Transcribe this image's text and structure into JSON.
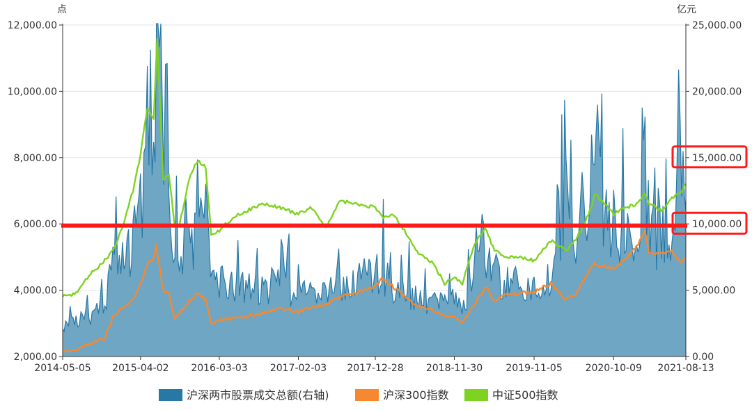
{
  "chart_data": {
    "type": "area",
    "y_left_unit": "点",
    "y_right_unit": "亿元",
    "y_left_ticks": [
      "2,000.00",
      "4,000.00",
      "6,000.00",
      "8,000.00",
      "10,000.00",
      "12,000.00"
    ],
    "y_right_ticks": [
      "0.00",
      "5,000.00",
      "10,000.00",
      "15,000.00",
      "20,000.00",
      "25,000.00"
    ],
    "ylim_left": [
      2000,
      12000
    ],
    "ylim_right": [
      0,
      25000
    ],
    "x_ticks": [
      "2014-05-05",
      "2015-04-02",
      "2016-03-03",
      "2017-02-03",
      "2017-12-28",
      "2018-11-30",
      "2019-11-05",
      "2020-10-09",
      "2021-08-13"
    ],
    "xlim": [
      "2014-05-05",
      "2021-08-13"
    ],
    "grid": true,
    "legend_position": "bottom",
    "series": [
      {
        "name": "沪深两市股票成交总额(右轴)",
        "type": "area",
        "axis": "right",
        "color": "#2878a6",
        "fill": "#6ea6c4",
        "x": [
          "2014-05-05",
          "2014-07-01",
          "2014-09-01",
          "2014-11-01",
          "2014-12-05",
          "2015-01-15",
          "2015-03-01",
          "2015-04-02",
          "2015-05-01",
          "2015-05-28",
          "2015-06-15",
          "2015-07-10",
          "2015-08-01",
          "2015-08-20",
          "2015-09-15",
          "2015-11-01",
          "2015-12-01",
          "2016-01-05",
          "2016-02-15",
          "2016-03-03",
          "2016-05-01",
          "2016-07-01",
          "2016-09-01",
          "2016-11-15",
          "2017-02-03",
          "2017-04-01",
          "2017-06-01",
          "2017-08-01",
          "2017-10-01",
          "2017-12-28",
          "2018-01-25",
          "2018-03-15",
          "2018-05-01",
          "2018-07-01",
          "2018-09-01",
          "2018-10-20",
          "2018-11-30",
          "2019-01-15",
          "2019-02-25",
          "2019-03-10",
          "2019-04-15",
          "2019-05-20",
          "2019-07-01",
          "2019-09-01",
          "2019-11-05",
          "2020-01-15",
          "2020-02-25",
          "2020-03-20",
          "2020-05-01",
          "2020-07-07",
          "2020-07-20",
          "2020-08-20",
          "2020-10-09",
          "2020-12-01",
          "2021-01-15",
          "2021-02-20",
          "2021-03-20",
          "2021-05-01",
          "2021-06-15",
          "2021-07-20",
          "2021-08-13"
        ],
        "values": [
          2100,
          2700,
          3000,
          3900,
          7800,
          6800,
          8200,
          11000,
          13000,
          14300,
          23400,
          15500,
          11000,
          9000,
          7000,
          8200,
          9200,
          10500,
          5200,
          5800,
          5200,
          5000,
          4700,
          5500,
          4300,
          4500,
          4700,
          5500,
          5600,
          6000,
          6200,
          5000,
          4700,
          4300,
          3900,
          3600,
          4000,
          3800,
          6300,
          9200,
          7600,
          6300,
          5200,
          5600,
          4800,
          5600,
          9100,
          11700,
          6800,
          12900,
          17500,
          11000,
          8600,
          8900,
          9500,
          10500,
          8800,
          8500,
          9500,
          13800,
          11000
        ]
      },
      {
        "name": "沪深300指数",
        "type": "line",
        "axis": "left",
        "color": "#f7882f",
        "x": [
          "2014-05-05",
          "2014-07-01",
          "2014-09-01",
          "2014-11-01",
          "2014-12-05",
          "2015-01-15",
          "2015-03-01",
          "2015-04-02",
          "2015-05-01",
          "2015-05-28",
          "2015-06-08",
          "2015-07-08",
          "2015-08-01",
          "2015-08-26",
          "2015-09-15",
          "2015-11-01",
          "2015-12-01",
          "2016-01-05",
          "2016-01-28",
          "2016-03-03",
          "2016-05-01",
          "2016-07-01",
          "2016-09-01",
          "2016-11-15",
          "2017-02-03",
          "2017-04-01",
          "2017-06-01",
          "2017-08-01",
          "2017-10-01",
          "2017-12-28",
          "2018-01-25",
          "2018-03-15",
          "2018-05-01",
          "2018-07-01",
          "2018-09-01",
          "2018-10-20",
          "2018-11-30",
          "2019-01-03",
          "2019-02-25",
          "2019-04-15",
          "2019-05-20",
          "2019-07-01",
          "2019-09-01",
          "2019-11-05",
          "2020-01-15",
          "2020-03-20",
          "2020-05-01",
          "2020-07-07",
          "2020-07-20",
          "2020-10-09",
          "2020-12-01",
          "2021-01-15",
          "2021-02-18",
          "2021-03-10",
          "2021-05-01",
          "2021-06-15",
          "2021-07-20",
          "2021-08-13"
        ],
        "values": [
          2180,
          2200,
          2400,
          2550,
          3200,
          3450,
          3700,
          4200,
          4800,
          4950,
          5350,
          4000,
          3900,
          3100,
          3300,
          3700,
          3900,
          3700,
          2950,
          3100,
          3150,
          3200,
          3300,
          3450,
          3350,
          3500,
          3550,
          3800,
          3900,
          4100,
          4380,
          4100,
          3800,
          3500,
          3400,
          3200,
          3200,
          3000,
          3600,
          4100,
          3700,
          3850,
          3900,
          3950,
          4200,
          3700,
          3900,
          4700,
          4800,
          4650,
          4950,
          5300,
          5800,
          5100,
          5100,
          5200,
          4850,
          4950
        ]
      },
      {
        "name": "中证500指数",
        "type": "line",
        "axis": "left",
        "color": "#7ed321",
        "x": [
          "2014-05-05",
          "2014-07-01",
          "2014-09-01",
          "2014-11-01",
          "2014-12-05",
          "2015-01-15",
          "2015-03-01",
          "2015-04-02",
          "2015-05-01",
          "2015-05-28",
          "2015-06-12",
          "2015-07-08",
          "2015-08-01",
          "2015-08-26",
          "2015-09-15",
          "2015-11-01",
          "2015-12-01",
          "2016-01-05",
          "2016-01-28",
          "2016-03-03",
          "2016-05-01",
          "2016-07-01",
          "2016-09-01",
          "2016-11-15",
          "2017-02-03",
          "2017-04-01",
          "2017-06-01",
          "2017-08-01",
          "2017-10-01",
          "2017-12-28",
          "2018-01-25",
          "2018-03-15",
          "2018-05-01",
          "2018-07-01",
          "2018-09-01",
          "2018-10-20",
          "2018-11-30",
          "2019-01-03",
          "2019-02-25",
          "2019-04-10",
          "2019-05-20",
          "2019-07-01",
          "2019-09-01",
          "2019-11-05",
          "2020-01-15",
          "2020-03-20",
          "2020-05-01",
          "2020-07-07",
          "2020-07-20",
          "2020-10-09",
          "2020-12-01",
          "2021-01-15",
          "2021-02-18",
          "2021-03-10",
          "2021-05-01",
          "2021-06-15",
          "2021-07-20",
          "2021-08-13"
        ],
        "values": [
          3800,
          3900,
          4500,
          4900,
          5200,
          5900,
          7000,
          8100,
          9500,
          9200,
          11600,
          7300,
          7500,
          5900,
          6000,
          7500,
          7900,
          7700,
          5700,
          5800,
          6200,
          6400,
          6600,
          6500,
          6300,
          6500,
          5900,
          6700,
          6600,
          6500,
          6200,
          6300,
          5800,
          5100,
          4800,
          4200,
          4400,
          4200,
          5400,
          5900,
          5200,
          5000,
          5000,
          4900,
          5500,
          5200,
          5500,
          6500,
          6900,
          6300,
          6500,
          6600,
          6900,
          6600,
          6400,
          6800,
          6900,
          7200
        ]
      }
    ],
    "annotations": [
      {
        "type": "horizontal-line",
        "axis": "left",
        "value": 5950,
        "color": "#ff1a1a"
      },
      {
        "type": "box",
        "axis": "right",
        "label": "15,000.00",
        "color": "#ff1a1a"
      },
      {
        "type": "box",
        "axis": "right",
        "label": "10,000.00",
        "color": "#ff1a1a"
      }
    ]
  }
}
